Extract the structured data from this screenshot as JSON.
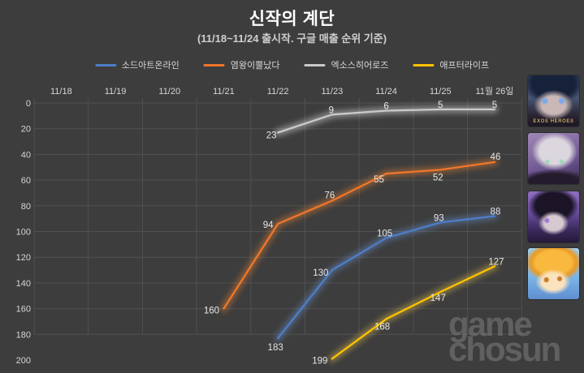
{
  "header": {
    "title": "신작의 계단",
    "subtitle": "(11/18~11/24 출시작. 구글 매출 순위 기준)"
  },
  "colors": {
    "background": "#3d3d3d",
    "gridline": "#515151",
    "axis_label": "#d6d6d6",
    "data_label": "#e6e6e6",
    "title": "#ffffff",
    "subtitle": "#cfcfcf"
  },
  "legend": [
    {
      "label": "소드아트온라인",
      "color": "#4d7ec8",
      "glow": "#6f9ae0"
    },
    {
      "label": "염왕이뿔났다",
      "color": "#f0762a",
      "glow": "#ff8c30"
    },
    {
      "label": "엑소스히어로즈",
      "color": "#c9c9c9",
      "glow": "#ffffff"
    },
    {
      "label": "애프터라이프",
      "color": "#fec200",
      "glow": "#ffd34a"
    }
  ],
  "chart_data": {
    "type": "line",
    "title": "신작의 계단",
    "subtitle": "(11/18~11/24 출시작. 구글 매출 순위 기준)",
    "categories": [
      "11/18",
      "11/19",
      "11/20",
      "11/21",
      "11/22",
      "11/23",
      "11/24",
      "11/25",
      "11월 26일"
    ],
    "y_ticks": [
      0,
      20,
      40,
      60,
      80,
      100,
      120,
      140,
      160,
      180,
      200
    ],
    "ylim": [
      0,
      200
    ],
    "y_inverted": true,
    "grid": true,
    "legend_position": "top",
    "series": [
      {
        "name": "소드아트온라인",
        "color": "#4d7ec8",
        "glow": "#6f9ae0",
        "values": [
          null,
          null,
          null,
          null,
          183,
          130,
          105,
          93,
          88
        ]
      },
      {
        "name": "염왕이뿔났다",
        "color": "#f0762a",
        "glow": "#ff8c30",
        "values": [
          null,
          null,
          null,
          160,
          94,
          76,
          55,
          52,
          46
        ]
      },
      {
        "name": "엑소스히어로즈",
        "color": "#c9c9c9",
        "glow": "#ffffff",
        "values": [
          null,
          null,
          null,
          null,
          23,
          9,
          6,
          5,
          5
        ]
      },
      {
        "name": "애프터라이프",
        "color": "#fec200",
        "glow": "#ffd34a",
        "values": [
          null,
          null,
          null,
          null,
          null,
          199,
          168,
          147,
          127
        ]
      }
    ]
  },
  "game_icons": [
    {
      "name": "엑소스히어로즈",
      "caption": "EXOS HEROES"
    },
    {
      "name": "염왕이뿔났다",
      "caption": ""
    },
    {
      "name": "소드아트온라인",
      "caption": ""
    },
    {
      "name": "애프터라이프",
      "caption": ""
    }
  ],
  "watermark": {
    "line1": "game",
    "line2": "chosun"
  }
}
